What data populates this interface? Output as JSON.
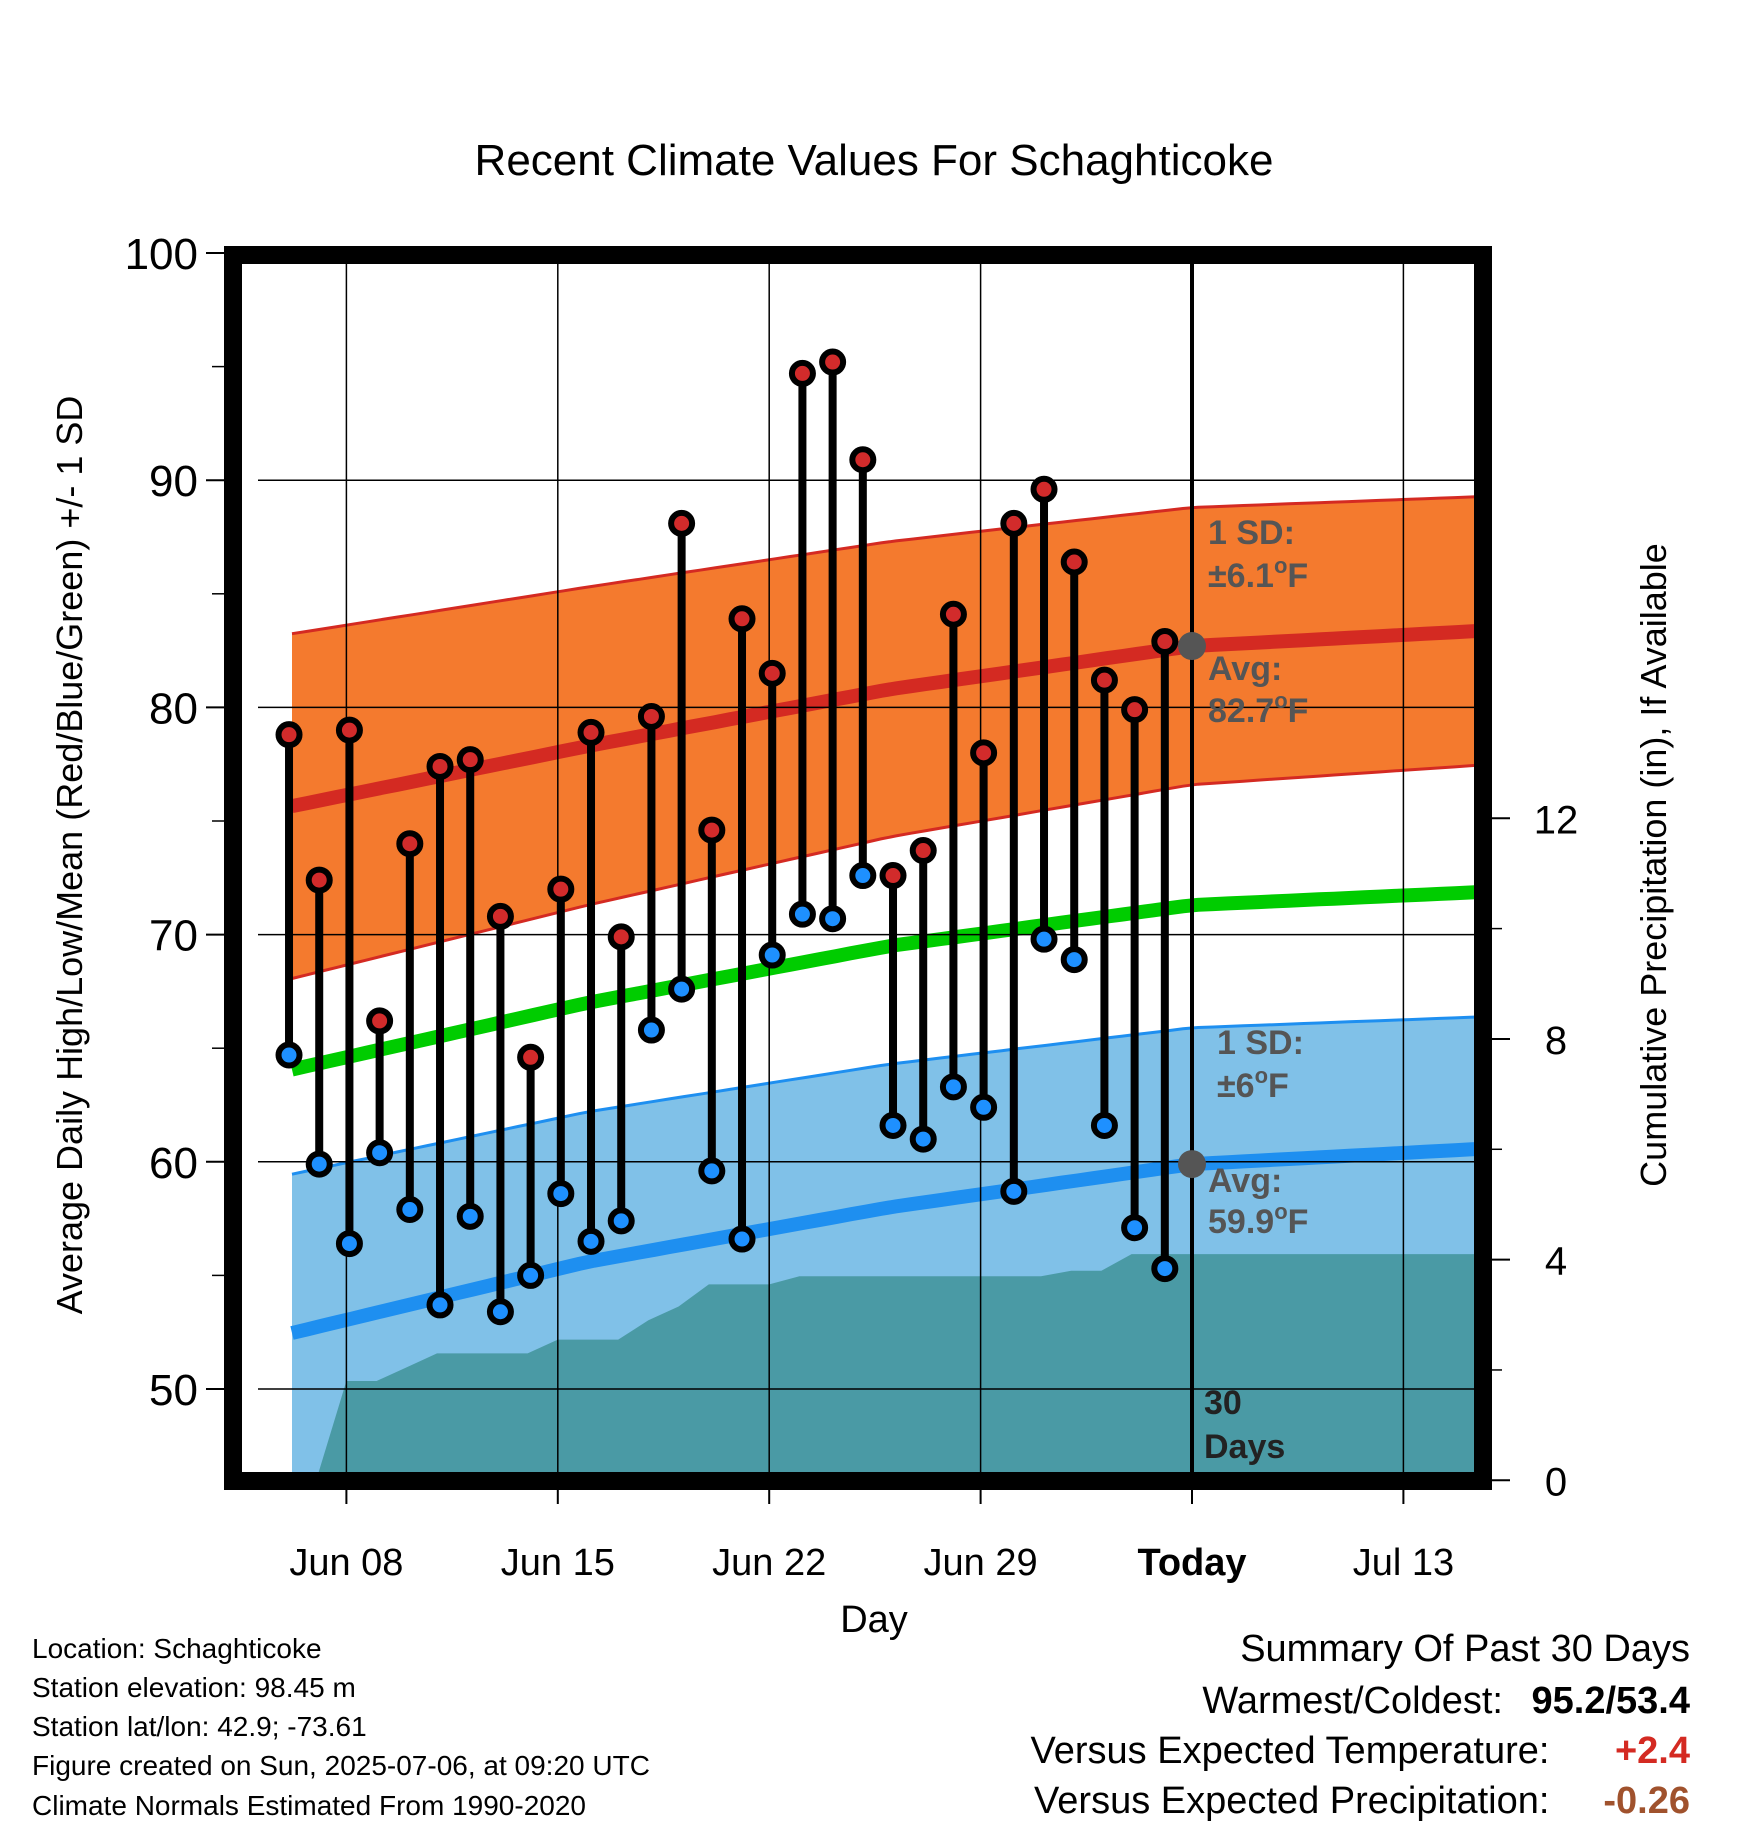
{
  "chart_data": {
    "type": "line",
    "title": "Recent Climate Values For Schaghticoke",
    "xlabel": "Day",
    "ylabel_left": "Average Daily High/Low/Mean (Red/Blue/Green) +/- 1 SD",
    "ylabel_right": "Cumulative Precipitation (in), If Available",
    "ylim": [
      45.4,
      100
    ],
    "ylim_right": [
      0,
      19.4
    ],
    "x_range": [
      -29.8,
      18
    ],
    "x_ticks": [
      {
        "label": "Jun 08",
        "day": -28
      },
      {
        "label": "Jun 15",
        "day": -21
      },
      {
        "label": "Jun 22",
        "day": -14
      },
      {
        "label": "Jun 29",
        "day": -7
      },
      {
        "label": "Today",
        "day": 0
      },
      {
        "label": "Jul 13",
        "day": 7
      }
    ],
    "y_ticks_left": [
      50,
      60,
      70,
      80,
      90,
      100
    ],
    "y_ticks_right": [
      0,
      4,
      8,
      12
    ],
    "grid": true,
    "highs": [
      78.8,
      72.4,
      79.0,
      66.2,
      74.0,
      77.4,
      77.7,
      70.8,
      64.6,
      72.0,
      78.9,
      69.9,
      79.6,
      88.1,
      74.6,
      83.9,
      81.5,
      94.7,
      95.2,
      90.9,
      72.6,
      73.7,
      84.1,
      78.0,
      88.1,
      89.6,
      86.4,
      81.2,
      79.9,
      82.9
    ],
    "lows": [
      64.7,
      59.9,
      56.4,
      60.4,
      57.9,
      53.7,
      57.6,
      53.4,
      55.0,
      58.6,
      56.5,
      57.4,
      65.8,
      67.6,
      59.6,
      56.6,
      69.1,
      70.9,
      70.7,
      72.6,
      61.6,
      61.0,
      63.3,
      62.4,
      58.7,
      69.8,
      68.9,
      61.6,
      57.1,
      55.3
    ],
    "normal_high": {
      "x": [
        -30,
        -20,
        -10,
        0,
        10,
        18
      ],
      "avg": [
        75.6,
        78.3,
        80.8,
        82.7,
        83.4,
        83.5
      ],
      "sd": [
        7.6,
        7.0,
        6.5,
        6.1,
        5.9,
        5.9
      ]
    },
    "normal_low": {
      "x": [
        -30,
        -20,
        -10,
        0,
        10,
        18
      ],
      "avg": [
        52.4,
        55.6,
        58.0,
        59.9,
        60.6,
        60.8
      ],
      "sd": [
        7.0,
        6.6,
        6.3,
        6.0,
        5.8,
        5.7
      ]
    },
    "normal_mean": {
      "x": [
        -30,
        -20,
        -10,
        0,
        10,
        18
      ],
      "avg": [
        64.0,
        67.0,
        69.5,
        71.3,
        71.9,
        72.0
      ]
    },
    "precip_cum": {
      "x": [
        -29,
        -28,
        -27,
        -26,
        -25,
        -24,
        -23,
        -22,
        -21,
        -20,
        -19,
        -18,
        -17,
        -16,
        -15,
        -14,
        -13,
        -12,
        -11,
        -10,
        -9,
        -8,
        -7,
        -6,
        -5,
        -4,
        -3,
        -2,
        -1,
        0,
        18
      ],
      "values": [
        0,
        1.8,
        1.8,
        2.05,
        2.3,
        2.3,
        2.3,
        2.3,
        2.55,
        2.55,
        2.55,
        2.9,
        3.15,
        3.55,
        3.55,
        3.55,
        3.7,
        3.7,
        3.7,
        3.7,
        3.7,
        3.7,
        3.7,
        3.7,
        3.7,
        3.8,
        3.8,
        4.1,
        4.1,
        4.1,
        4.1
      ]
    },
    "high_annot": {
      "sd_label": "1 SD:",
      "sd_value": "±6.1",
      "avg_label": "Avg:",
      "avg_value": "82.7",
      "unit": "o",
      "unit_suffix": "F"
    },
    "low_annot": {
      "sd_label": "1 SD:",
      "sd_value": "±6",
      "avg_label": "Avg:",
      "avg_value": "59.9",
      "unit": "o",
      "unit_suffix": "F"
    },
    "window_label_1": "30",
    "window_label_2": "Days",
    "colors": {
      "high_band": "#f47a2e",
      "high_line": "#d42a22",
      "low_band": "#80c1e8",
      "low_line": "#1e8ff0",
      "mean_line": "#00cc00",
      "precip": "#4a9aa5",
      "high_dot": "#d22b2b",
      "low_dot": "#1e90ff",
      "annot": "#555555",
      "today_dot": "#555555"
    }
  },
  "info": {
    "location": "Location: Schaghticoke",
    "elevation": "Station elevation: 98.45 m",
    "latlon": "Station lat/lon: 42.9; -73.61",
    "created": "Figure created on Sun, 2025-07-06, at 09:20 UTC",
    "normals": "Climate Normals Estimated From 1990-2020"
  },
  "summary": {
    "title": "Summary Of Past 30 Days",
    "warm_cold_label": "Warmest/Coldest:",
    "warm_cold_value": "95.2/53.4",
    "temp_label": "Versus Expected Temperature:",
    "temp_value": "+2.4",
    "temp_color": "#d42a22",
    "precip_label": "Versus Expected Precipitation:",
    "precip_value": "-0.26",
    "precip_color": "#a0522d"
  }
}
